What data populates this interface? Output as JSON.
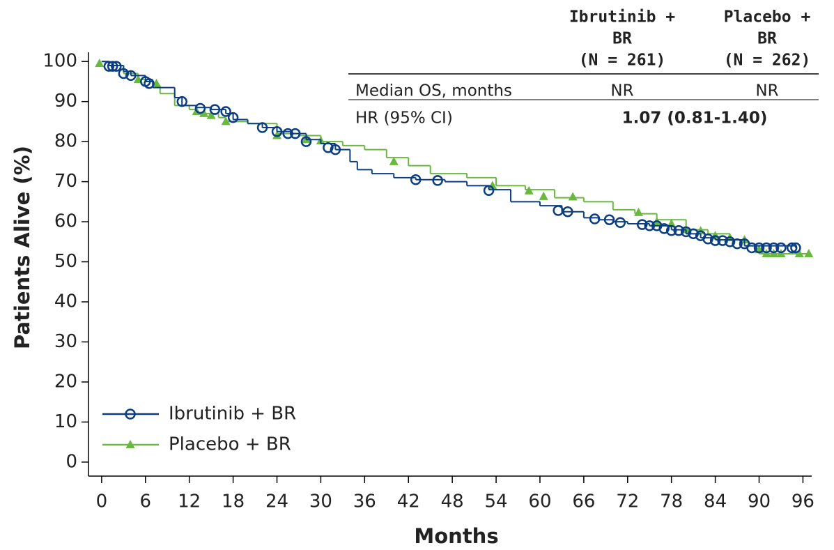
{
  "chart_data": {
    "type": "km",
    "xlabel": "Months",
    "ylabel": "Patients Alive (%)",
    "xlim": [
      -1.8,
      97.2
    ],
    "ylim": [
      -3.5,
      102.3
    ],
    "xticks": [
      0,
      6,
      12,
      18,
      24,
      30,
      36,
      42,
      48,
      54,
      60,
      66,
      72,
      78,
      84,
      90,
      96
    ],
    "yticks": [
      0,
      10,
      20,
      30,
      40,
      50,
      60,
      70,
      80,
      90,
      100
    ],
    "series": [
      {
        "name": "Ibrutinib + BR",
        "color": "#0b3d82",
        "marker": "circle",
        "x": [
          0,
          1,
          3,
          4,
          6,
          7,
          10,
          11,
          13,
          15,
          17,
          18,
          20,
          22,
          24,
          26,
          28,
          30,
          32,
          34,
          35,
          37,
          40,
          43,
          47,
          50,
          53,
          56,
          60,
          63,
          66,
          68,
          70,
          72,
          75,
          78,
          80,
          82,
          84,
          88,
          95
        ],
        "values": [
          100,
          99,
          97.5,
          96.5,
          95,
          93.5,
          91,
          89,
          88.5,
          88,
          87,
          85.5,
          84.5,
          83.5,
          82.5,
          82,
          80.5,
          79.5,
          78,
          75,
          73,
          72,
          71,
          70.5,
          70,
          69,
          68,
          65,
          64,
          62.5,
          61,
          60.5,
          60,
          59.5,
          59,
          58,
          57,
          56,
          55.5,
          54,
          53.5
        ],
        "markers_x": [
          1,
          1.5,
          2,
          3,
          4,
          6,
          6.5,
          11,
          13.5,
          15.5,
          17,
          18,
          22,
          24,
          25.5,
          26.5,
          28,
          31,
          32,
          43,
          46,
          53,
          62.5,
          63.8,
          67.5,
          69.5,
          71,
          74,
          75,
          76,
          77,
          78,
          79,
          80,
          81,
          82,
          83,
          84,
          85,
          86,
          87,
          88,
          89,
          90,
          91,
          92,
          93,
          94.5,
          95
        ],
        "markers_y": [
          98.8,
          98.8,
          98.8,
          97,
          96.5,
          95,
          94.5,
          90,
          88.3,
          88,
          87.5,
          86,
          83.5,
          82.5,
          82,
          82,
          80,
          78.5,
          78,
          70.5,
          70.3,
          67.8,
          62.8,
          62.5,
          60.7,
          60.5,
          59.8,
          59.3,
          59,
          59,
          58.3,
          57.8,
          57.8,
          57.5,
          57,
          56.5,
          55.7,
          55.3,
          55.3,
          55,
          54.5,
          54.5,
          53.5,
          53.5,
          53.5,
          53.5,
          53.5,
          53.5,
          53.5
        ]
      },
      {
        "name": "Placebo + BR",
        "color": "#6ab842",
        "marker": "triangle",
        "x": [
          0,
          1,
          3,
          5,
          7,
          8,
          10,
          12,
          13,
          16,
          17,
          20,
          24,
          27,
          30,
          33,
          36,
          39,
          42,
          45,
          50,
          54,
          58,
          62,
          66,
          70,
          73,
          76,
          80,
          83,
          86,
          88,
          90,
          97
        ],
        "values": [
          100,
          99,
          97,
          95.5,
          94,
          92,
          89,
          88,
          87,
          86,
          85,
          84.5,
          82,
          81.5,
          80,
          79,
          78,
          76,
          74,
          72,
          71,
          69,
          68,
          66,
          65,
          63,
          62,
          60.5,
          58,
          57,
          55.5,
          54,
          52,
          52
        ],
        "markers_x": [
          -0.3,
          5,
          7.5,
          13,
          14,
          15,
          17,
          24,
          28,
          30,
          40,
          53.5,
          58.5,
          60.5,
          64.5,
          73.5,
          76,
          78,
          80,
          82,
          84,
          86,
          88,
          90,
          91,
          92,
          93,
          95.5,
          96.8
        ],
        "markers_y": [
          99.5,
          95.5,
          94.5,
          87.5,
          87,
          86.5,
          85,
          81.5,
          80.5,
          80.2,
          75,
          69,
          67.7,
          66.3,
          66.2,
          62.3,
          60,
          59.5,
          58,
          57.7,
          56.5,
          56,
          55.5,
          53,
          52,
          52,
          52,
          52,
          52
        ]
      }
    ],
    "table": {
      "headers": [
        [
          "Ibrutinib +",
          "BR",
          "(N = 261)"
        ],
        [
          "Placebo +",
          "BR",
          "(N = 262)"
        ]
      ],
      "rows": [
        [
          "Median OS, months",
          "NR",
          "NR"
        ],
        [
          "HR (95% CI)",
          "1.07 (0.81-1.40)"
        ]
      ]
    }
  }
}
